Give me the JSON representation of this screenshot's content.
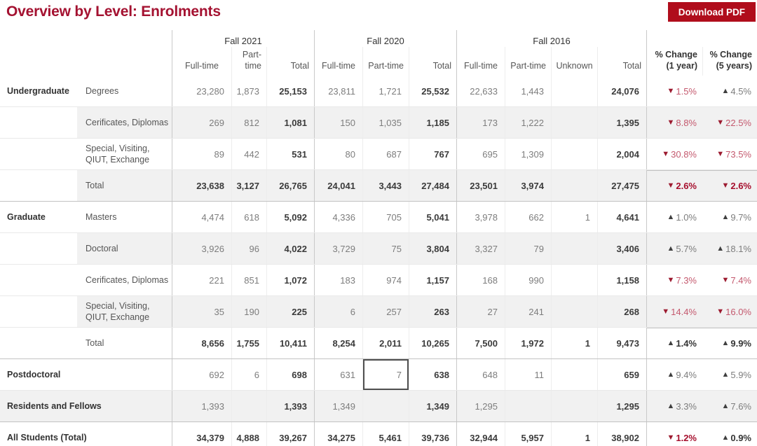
{
  "title": "Overview by Level: Enrolments",
  "download_button": "Download PDF",
  "icons": {
    "up": "▲",
    "down": "▼"
  },
  "colors": {
    "title": "#a41231",
    "button_bg": "#b00d1c",
    "down_triangle": "#9c1b30",
    "down_text": "#c4596e",
    "down_text_total": "#a60f2d",
    "up_triangle": "#3f3f3f",
    "up_text": "#7d7d7d",
    "up_text_total": "#343434",
    "row_band": "#f1f1f1"
  },
  "header": {
    "groups": [
      {
        "label": "Fall 2021",
        "cols": [
          "Full-time",
          "Part-time",
          "Total"
        ]
      },
      {
        "label": "Fall 2020",
        "cols": [
          "Full-time",
          "Part-time",
          "Total"
        ]
      },
      {
        "label": "Fall 2016",
        "cols": [
          "Full-time",
          "Part-time",
          "Unknown",
          "Total"
        ]
      },
      {
        "label": "",
        "cols": [
          "% Change (1 year)",
          "% Change (5 years)"
        ]
      }
    ]
  },
  "rows": [
    {
      "section": "Undergraduate",
      "label": "Degrees",
      "values": [
        "23,280",
        "1,873",
        "25,153",
        "23,811",
        "1,721",
        "25,532",
        "22,633",
        "1,443",
        "",
        "24,076"
      ],
      "changes": [
        {
          "dir": "down",
          "value": "1.5%"
        },
        {
          "dir": "up",
          "value": "4.5%"
        }
      ]
    },
    {
      "label": "Cerificates, Diplomas",
      "values": [
        "269",
        "812",
        "1,081",
        "150",
        "1,035",
        "1,185",
        "173",
        "1,222",
        "",
        "1,395"
      ],
      "changes": [
        {
          "dir": "down",
          "value": "8.8%"
        },
        {
          "dir": "down",
          "value": "22.5%"
        }
      ]
    },
    {
      "label": "Special, Visiting, QIUT, Exchange",
      "values": [
        "89",
        "442",
        "531",
        "80",
        "687",
        "767",
        "695",
        "1,309",
        "",
        "2,004"
      ],
      "changes": [
        {
          "dir": "down",
          "value": "30.8%"
        },
        {
          "dir": "down",
          "value": "73.5%"
        }
      ]
    },
    {
      "label": "Total",
      "total": true,
      "values": [
        "23,638",
        "3,127",
        "26,765",
        "24,041",
        "3,443",
        "27,484",
        "23,501",
        "3,974",
        "",
        "27,475"
      ],
      "changes": [
        {
          "dir": "down",
          "value": "2.6%"
        },
        {
          "dir": "down",
          "value": "2.6%"
        }
      ]
    },
    {
      "section": "Graduate",
      "label": "Masters",
      "new_section": true,
      "divider": true,
      "values": [
        "4,474",
        "618",
        "5,092",
        "4,336",
        "705",
        "5,041",
        "3,978",
        "662",
        "1",
        "4,641"
      ],
      "changes": [
        {
          "dir": "up",
          "value": "1.0%"
        },
        {
          "dir": "up",
          "value": "9.7%"
        }
      ]
    },
    {
      "label": "Doctoral",
      "values": [
        "3,926",
        "96",
        "4,022",
        "3,729",
        "75",
        "3,804",
        "3,327",
        "79",
        "",
        "3,406"
      ],
      "changes": [
        {
          "dir": "up",
          "value": "5.7%"
        },
        {
          "dir": "up",
          "value": "18.1%"
        }
      ]
    },
    {
      "label": "Cerificates, Diplomas",
      "values": [
        "221",
        "851",
        "1,072",
        "183",
        "974",
        "1,157",
        "168",
        "990",
        "",
        "1,158"
      ],
      "changes": [
        {
          "dir": "down",
          "value": "7.3%"
        },
        {
          "dir": "down",
          "value": "7.4%"
        }
      ]
    },
    {
      "label": "Special, Visiting, QIUT, Exchange",
      "values": [
        "35",
        "190",
        "225",
        "6",
        "257",
        "263",
        "27",
        "241",
        "",
        "268"
      ],
      "changes": [
        {
          "dir": "down",
          "value": "14.4%"
        },
        {
          "dir": "down",
          "value": "16.0%"
        }
      ]
    },
    {
      "label": "Total",
      "total": true,
      "values": [
        "8,656",
        "1,755",
        "10,411",
        "8,254",
        "2,011",
        "10,265",
        "7,500",
        "1,972",
        "1",
        "9,473"
      ],
      "changes": [
        {
          "dir": "up",
          "value": "1.4%"
        },
        {
          "dir": "up",
          "value": "9.9%"
        }
      ]
    },
    {
      "standalone": "Postdoctoral",
      "new_section": true,
      "divider": true,
      "values": [
        "692",
        "6",
        "698",
        "631",
        "7",
        "638",
        "648",
        "11",
        "",
        "659"
      ],
      "changes": [
        {
          "dir": "up",
          "value": "9.4%"
        },
        {
          "dir": "up",
          "value": "5.9%"
        }
      ]
    },
    {
      "standalone": "Residents and Fellows",
      "values": [
        "1,393",
        "",
        "1,393",
        "1,349",
        "",
        "1,349",
        "1,295",
        "",
        "",
        "1,295"
      ],
      "changes": [
        {
          "dir": "up",
          "value": "3.3%"
        },
        {
          "dir": "up",
          "value": "7.6%"
        }
      ]
    },
    {
      "standalone": "All Students (Total)",
      "total": true,
      "divider": true,
      "values": [
        "34,379",
        "4,888",
        "39,267",
        "34,275",
        "5,461",
        "39,736",
        "32,944",
        "5,957",
        "1",
        "38,902"
      ],
      "changes": [
        {
          "dir": "down",
          "value": "1.2%"
        },
        {
          "dir": "up",
          "value": "0.9%"
        }
      ]
    }
  ],
  "selected_cell": {
    "row_index": 9,
    "value_index": 4
  }
}
